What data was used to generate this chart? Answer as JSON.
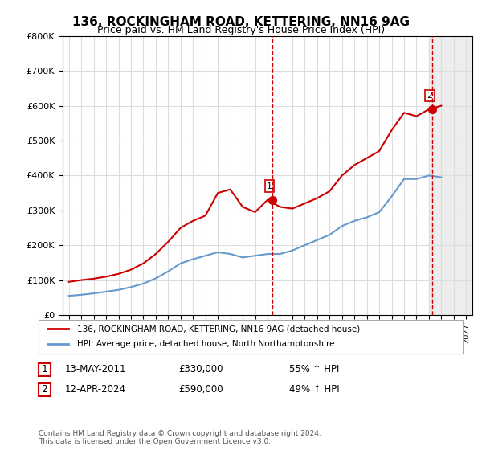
{
  "title": "136, ROCKINGHAM ROAD, KETTERING, NN16 9AG",
  "subtitle": "Price paid vs. HM Land Registry's House Price Index (HPI)",
  "legend_line1": "136, ROCKINGHAM ROAD, KETTERING, NN16 9AG (detached house)",
  "legend_line2": "HPI: Average price, detached house, North Northamptonshire",
  "annotation1_label": "1",
  "annotation1_date": "13-MAY-2011",
  "annotation1_price": "£330,000",
  "annotation1_hpi": "55% ↑ HPI",
  "annotation2_label": "2",
  "annotation2_date": "12-APR-2024",
  "annotation2_price": "£590,000",
  "annotation2_hpi": "49% ↑ HPI",
  "footnote": "Contains HM Land Registry data © Crown copyright and database right 2024.\nThis data is licensed under the Open Government Licence v3.0.",
  "red_color": "#cc0000",
  "blue_color": "#6699cc",
  "grid_color": "#dddddd",
  "bg_color": "#ffffff",
  "plot_bg": "#ffffff",
  "annotation_vline_color": "#cc0000",
  "shading_color": "#dddddd",
  "ylim": [
    0,
    800000
  ],
  "yticks": [
    0,
    100000,
    200000,
    300000,
    400000,
    500000,
    600000,
    700000,
    800000
  ],
  "hpi_years": [
    1995,
    1996,
    1997,
    1998,
    1999,
    2000,
    2001,
    2002,
    2003,
    2004,
    2005,
    2006,
    2007,
    2008,
    2009,
    2010,
    2011,
    2012,
    2013,
    2014,
    2015,
    2016,
    2017,
    2018,
    2019,
    2020,
    2021,
    2022,
    2023,
    2024,
    2025
  ],
  "hpi_values": [
    55000,
    58000,
    62000,
    67000,
    72000,
    80000,
    90000,
    105000,
    125000,
    148000,
    160000,
    170000,
    180000,
    175000,
    165000,
    170000,
    175000,
    175000,
    185000,
    200000,
    215000,
    230000,
    255000,
    270000,
    280000,
    295000,
    340000,
    390000,
    390000,
    400000,
    395000
  ],
  "red_x": [
    1995,
    1996,
    1997,
    1998,
    1999,
    2000,
    2001,
    2002,
    2003,
    2004,
    2005,
    2006,
    2007,
    2008,
    2009,
    2010,
    2011,
    2012,
    2013,
    2014,
    2015,
    2016,
    2017,
    2018,
    2019,
    2020,
    2021,
    2022,
    2023,
    2024,
    2025
  ],
  "red_values": [
    95000,
    100000,
    104000,
    110000,
    118000,
    130000,
    148000,
    175000,
    210000,
    250000,
    270000,
    285000,
    350000,
    360000,
    310000,
    295000,
    330000,
    310000,
    305000,
    320000,
    335000,
    355000,
    400000,
    430000,
    450000,
    470000,
    530000,
    580000,
    570000,
    590000,
    600000
  ],
  "point1_x": 2011.37,
  "point1_y": 330000,
  "point2_x": 2024.28,
  "point2_y": 590000,
  "xlim_left": 1994.5,
  "xlim_right": 2027.5,
  "shading_x_start": 2024,
  "shading_x_end": 2027.5
}
